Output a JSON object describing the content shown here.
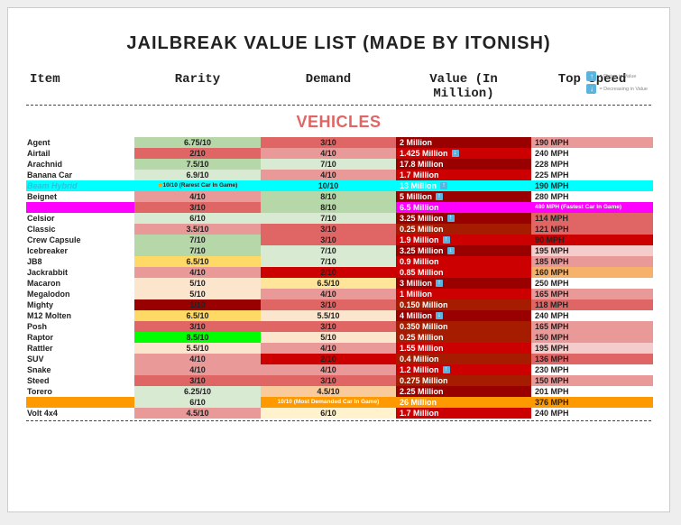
{
  "title": "JAILBREAK VALUE LIST (MADE BY ITONISH)",
  "legend": {
    "rising": "= Rising in Value",
    "decreasing": "= Decreasing in Value"
  },
  "columns": [
    "Item",
    "Rarity",
    "Demand",
    "Value (In Million)",
    "Top Speed"
  ],
  "section": "VEHICLES",
  "palette": {
    "green1": "#d9ead3",
    "green2": "#b6d7a8",
    "green3": "#93c47d",
    "green4": "#6aa84f",
    "brightgreen": "#00ff00",
    "red1": "#f4cccc",
    "red2": "#ea9999",
    "red3": "#e06666",
    "red4": "#cc0000",
    "red5": "#990000",
    "darkred": "#a61c00",
    "orange1": "#fce5cd",
    "orange2": "#f9cb9c",
    "orange3": "#f6b26b",
    "orange4": "#ff9900",
    "yellow1": "#fff2cc",
    "yellow2": "#ffe599",
    "yellow3": "#ffd966",
    "cyan": "#00ffff",
    "magenta": "#ff00ff",
    "white": "#ffffff"
  },
  "rows": [
    {
      "item": "Agent",
      "rarity": "6.75/10",
      "rarity_bg": "green2",
      "demand": "3/10",
      "demand_bg": "red3",
      "value": "2 Million",
      "value_bg": "red5",
      "speed": "190 MPH",
      "speed_bg": "red2"
    },
    {
      "item": "Airtail",
      "rarity": "2/10",
      "rarity_bg": "red3",
      "demand": "4/10",
      "demand_bg": "red2",
      "value": "1.425 Million",
      "value_bg": "red4",
      "value_icon": "down",
      "speed": "240 MPH",
      "speed_bg": "whiteuse",
      "item_color": "#222"
    },
    {
      "item": "Arachnid",
      "rarity": "7.5/10",
      "rarity_bg": "green2",
      "demand": "7/10",
      "demand_bg": "green1",
      "value": "17.8 Million",
      "value_bg": "red5",
      "speed": "228 MPH",
      "speed_bg": "white"
    },
    {
      "item": "Banana Car",
      "rarity": "6.9/10",
      "rarity_bg": "green1",
      "demand": "4/10",
      "demand_bg": "red2",
      "value": "1.7 Million",
      "value_bg": "red4",
      "speed": "225 MPH",
      "speed_bg": "white"
    },
    {
      "item": "Beam Hybrid",
      "item_color": "#26c6da",
      "item_italic": true,
      "rarity": "10/10 (Rarest Car In Game)",
      "rarity_bg": "cyan",
      "rarity_note": true,
      "demand": "10/10",
      "demand_bg": "cyan",
      "value": "13 Million",
      "value_bg": "cyan",
      "value_icon": "up",
      "speed": "190 MPH",
      "speed_bg": "cyan",
      "row_bg": "cyan"
    },
    {
      "item": "Beignet",
      "rarity": "4/10",
      "rarity_bg": "red2",
      "demand": "8/10",
      "demand_bg": "green2",
      "value": "5 Million",
      "value_bg": "red5",
      "value_icon": "up",
      "speed": "280 MPH",
      "speed_bg": "white"
    },
    {
      "item": "Brulee",
      "item_color": "#ff00ff",
      "item_italic": true,
      "rarity": "3/10",
      "rarity_bg": "red3",
      "demand": "8/10",
      "demand_bg": "green2",
      "value": "6.5 Million",
      "value_bg": "magenta",
      "speed": "480 MPH (Fastest Car In Game)",
      "speed_bg": "magenta",
      "speed_note": true,
      "row_bg": "magenta"
    },
    {
      "item": "Celsior",
      "rarity": "6/10",
      "rarity_bg": "green1",
      "demand": "7/10",
      "demand_bg": "green1",
      "value": "3.25 Million",
      "value_bg": "red5",
      "value_icon": "up",
      "speed": "114 MPH",
      "speed_bg": "red3"
    },
    {
      "item": "Classic",
      "rarity": "3.5/10",
      "rarity_bg": "red2",
      "demand": "3/10",
      "demand_bg": "red3",
      "value": "0.25 Million",
      "value_bg": "darkred",
      "speed": "121 MPH",
      "speed_bg": "red3"
    },
    {
      "item": "Crew Capsule",
      "rarity": "7/10",
      "rarity_bg": "green2",
      "demand": "3/10",
      "demand_bg": "red3",
      "value": "1.9 Million",
      "value_bg": "red4",
      "value_icon": "up",
      "speed": "90 MPH",
      "speed_bg": "red4"
    },
    {
      "item": "Icebreaker",
      "rarity": "7/10",
      "rarity_bg": "green2",
      "demand": "7/10",
      "demand_bg": "green1",
      "value": "3.25 Million",
      "value_bg": "red5",
      "value_icon": "down",
      "speed": "195 MPH",
      "speed_bg": "red1"
    },
    {
      "item": "JB8",
      "rarity": "6.5/10",
      "rarity_bg": "yellow3",
      "demand": "7/10",
      "demand_bg": "green1",
      "value": "0.9 Million",
      "value_bg": "red4",
      "speed": "185 MPH",
      "speed_bg": "red2"
    },
    {
      "item": "Jackrabbit",
      "rarity": "4/10",
      "rarity_bg": "red2",
      "demand": "2/10",
      "demand_bg": "red4",
      "value": "0.85 Million",
      "value_bg": "red4",
      "speed": "160 MPH",
      "speed_bg": "orange3"
    },
    {
      "item": "Macaron",
      "rarity": "5/10",
      "rarity_bg": "orange1",
      "demand": "6.5/10",
      "demand_bg": "yellow2",
      "value": "3 Million",
      "value_bg": "red5",
      "value_icon": "up",
      "speed": "250 MPH",
      "speed_bg": "white"
    },
    {
      "item": "Megalodon",
      "rarity": "5/10",
      "rarity_bg": "orange1",
      "demand": "4/10",
      "demand_bg": "red2",
      "value": "1 Million",
      "value_bg": "red4",
      "speed": "165 MPH",
      "speed_bg": "red2"
    },
    {
      "item": "Mighty",
      "rarity": "1/10",
      "rarity_bg": "red5",
      "demand": "3/10",
      "demand_bg": "red3",
      "value": "0.150 Million",
      "value_bg": "darkred",
      "speed": "118 MPH",
      "speed_bg": "red3"
    },
    {
      "item": "M12 Molten",
      "rarity": "6.5/10",
      "rarity_bg": "yellow3",
      "demand": "5.5/10",
      "demand_bg": "orange1",
      "value": "4 Million",
      "value_bg": "red5",
      "value_icon": "down",
      "speed": "240 MPH",
      "speed_bg": "white"
    },
    {
      "item": "Posh",
      "rarity": "3/10",
      "rarity_bg": "red3",
      "demand": "3/10",
      "demand_bg": "red3",
      "value": "0.350 Million",
      "value_bg": "darkred",
      "speed": "165 MPH",
      "speed_bg": "red2"
    },
    {
      "item": "Raptor",
      "rarity": "8.5/10",
      "rarity_bg": "brightgreen",
      "demand": "5/10",
      "demand_bg": "orange1",
      "value": "0.25 Million",
      "value_bg": "darkred",
      "speed": "150 MPH",
      "speed_bg": "red2"
    },
    {
      "item": "Rattler",
      "rarity": "5.5/10",
      "rarity_bg": "orange1",
      "demand": "4/10",
      "demand_bg": "red2",
      "value": "1.55 Million",
      "value_bg": "red4",
      "speed": "195 MPH",
      "speed_bg": "red1"
    },
    {
      "item": "SUV",
      "rarity": "4/10",
      "rarity_bg": "red2",
      "demand": "2/10",
      "demand_bg": "red4",
      "value": "0.4 Million",
      "value_bg": "darkred",
      "speed": "136 MPH",
      "speed_bg": "red3"
    },
    {
      "item": "Snake",
      "rarity": "4/10",
      "rarity_bg": "red2",
      "demand": "4/10",
      "demand_bg": "red2",
      "value": "1.2 Million",
      "value_bg": "red4",
      "value_icon": "up",
      "speed": "230 MPH",
      "speed_bg": "white"
    },
    {
      "item": "Steed",
      "rarity": "3/10",
      "rarity_bg": "red3",
      "demand": "3/10",
      "demand_bg": "red3",
      "value": "0.275 Million",
      "value_bg": "darkred",
      "speed": "150 MPH",
      "speed_bg": "red2"
    },
    {
      "item": "Torero",
      "rarity": "6.25/10",
      "rarity_bg": "green1",
      "demand": "4.5/10",
      "demand_bg": "orange2",
      "value": "2.25 Million",
      "value_bg": "red5",
      "speed": "201 MPH",
      "speed_bg": "white"
    },
    {
      "item": "Torpedo",
      "item_color": "#ff9900",
      "item_italic": true,
      "rarity": "6/10",
      "rarity_bg": "green1",
      "demand": "10/10 (Most Demanded Car In Game)",
      "demand_bg": "orange4",
      "demand_note": true,
      "value": "26 Million",
      "value_bg": "orange4",
      "speed": "376 MPH",
      "speed_bg": "orange4",
      "row_bg": "orange4"
    },
    {
      "item": "Volt 4x4",
      "rarity": "4.5/10",
      "rarity_bg": "red2",
      "demand": "6/10",
      "demand_bg": "yellow1",
      "value": "1.7 Million",
      "value_bg": "red4",
      "speed": "240 MPH",
      "speed_bg": "white"
    }
  ]
}
